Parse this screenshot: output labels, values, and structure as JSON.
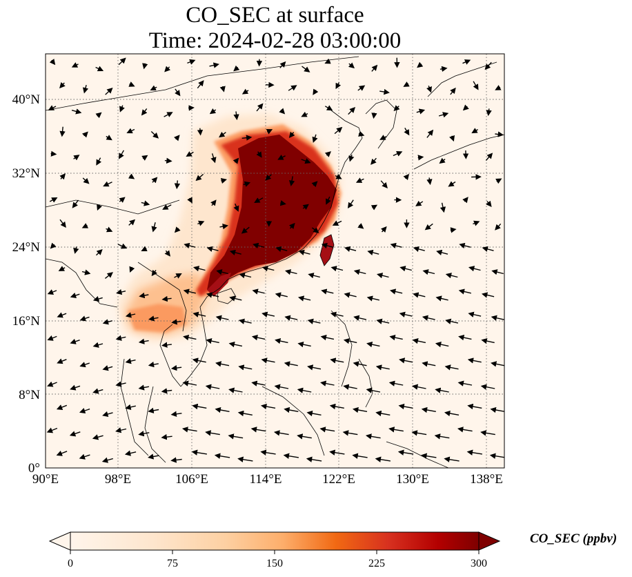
{
  "title": {
    "line1": "CO_SEC at surface",
    "line2": "Time: 2024-02-28 03:00:00"
  },
  "map": {
    "extent": {
      "lon": [
        90,
        140
      ],
      "lat": [
        0,
        45
      ]
    },
    "gridlines": "dotted",
    "lat_ticks": [
      "0°",
      "8°N",
      "16°N",
      "24°N",
      "32°N",
      "40°N"
    ],
    "lon_ticks": [
      "90°E",
      "98°E",
      "106°E",
      "114°E",
      "122°E",
      "130°E",
      "138°E"
    ],
    "field_name": "CO_SEC",
    "vectors": "surface wind arrows",
    "high_concentration_region": "Eastern China, Taiwan, Southern China coast",
    "moderate_concentration_region": "Northern Thailand / Laos / Myanmar border"
  },
  "colorbar": {
    "label": "CO_SEC (ppbv)",
    "ticks": [
      "0",
      "75",
      "150",
      "225",
      "300"
    ],
    "colors": [
      "#fff5eb",
      "#fdd0a2",
      "#fd8d3c",
      "#d94801",
      "#a50f15",
      "#7f0000"
    ],
    "extend": "both"
  }
}
